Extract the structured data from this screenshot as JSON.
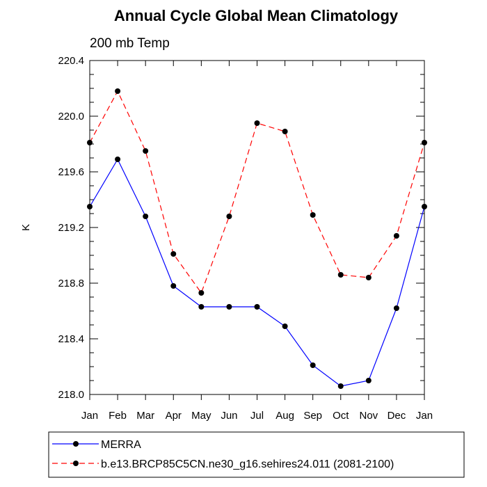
{
  "chart_data": {
    "type": "line",
    "title": "Annual Cycle Global Mean Climatology",
    "subtitle": "200 mb Temp",
    "xlabel": "",
    "ylabel": "K",
    "categories": [
      "Jan",
      "Feb",
      "Mar",
      "Apr",
      "May",
      "Jun",
      "Jul",
      "Aug",
      "Sep",
      "Oct",
      "Nov",
      "Dec",
      "Jan"
    ],
    "ylim": [
      218.0,
      220.4
    ],
    "yticks": [
      "218.0",
      "218.4",
      "218.8",
      "219.2",
      "219.6",
      "220.0",
      "220.4"
    ],
    "grid": false,
    "legend_position": "bottom",
    "series": [
      {
        "name": "MERRA",
        "color": "#0000ff",
        "style": "solid",
        "values": [
          219.35,
          219.69,
          219.28,
          218.78,
          218.63,
          218.63,
          218.63,
          218.49,
          218.21,
          218.06,
          218.1,
          218.62,
          219.35
        ]
      },
      {
        "name": "b.e13.BRCP85C5CN.ne30_g16.sehires24.011 (2081-2100)",
        "color": "#ff0000",
        "style": "dashed",
        "values": [
          219.81,
          220.18,
          219.75,
          219.01,
          218.73,
          219.28,
          219.95,
          219.89,
          219.29,
          218.86,
          218.84,
          219.14,
          219.81
        ]
      }
    ]
  }
}
